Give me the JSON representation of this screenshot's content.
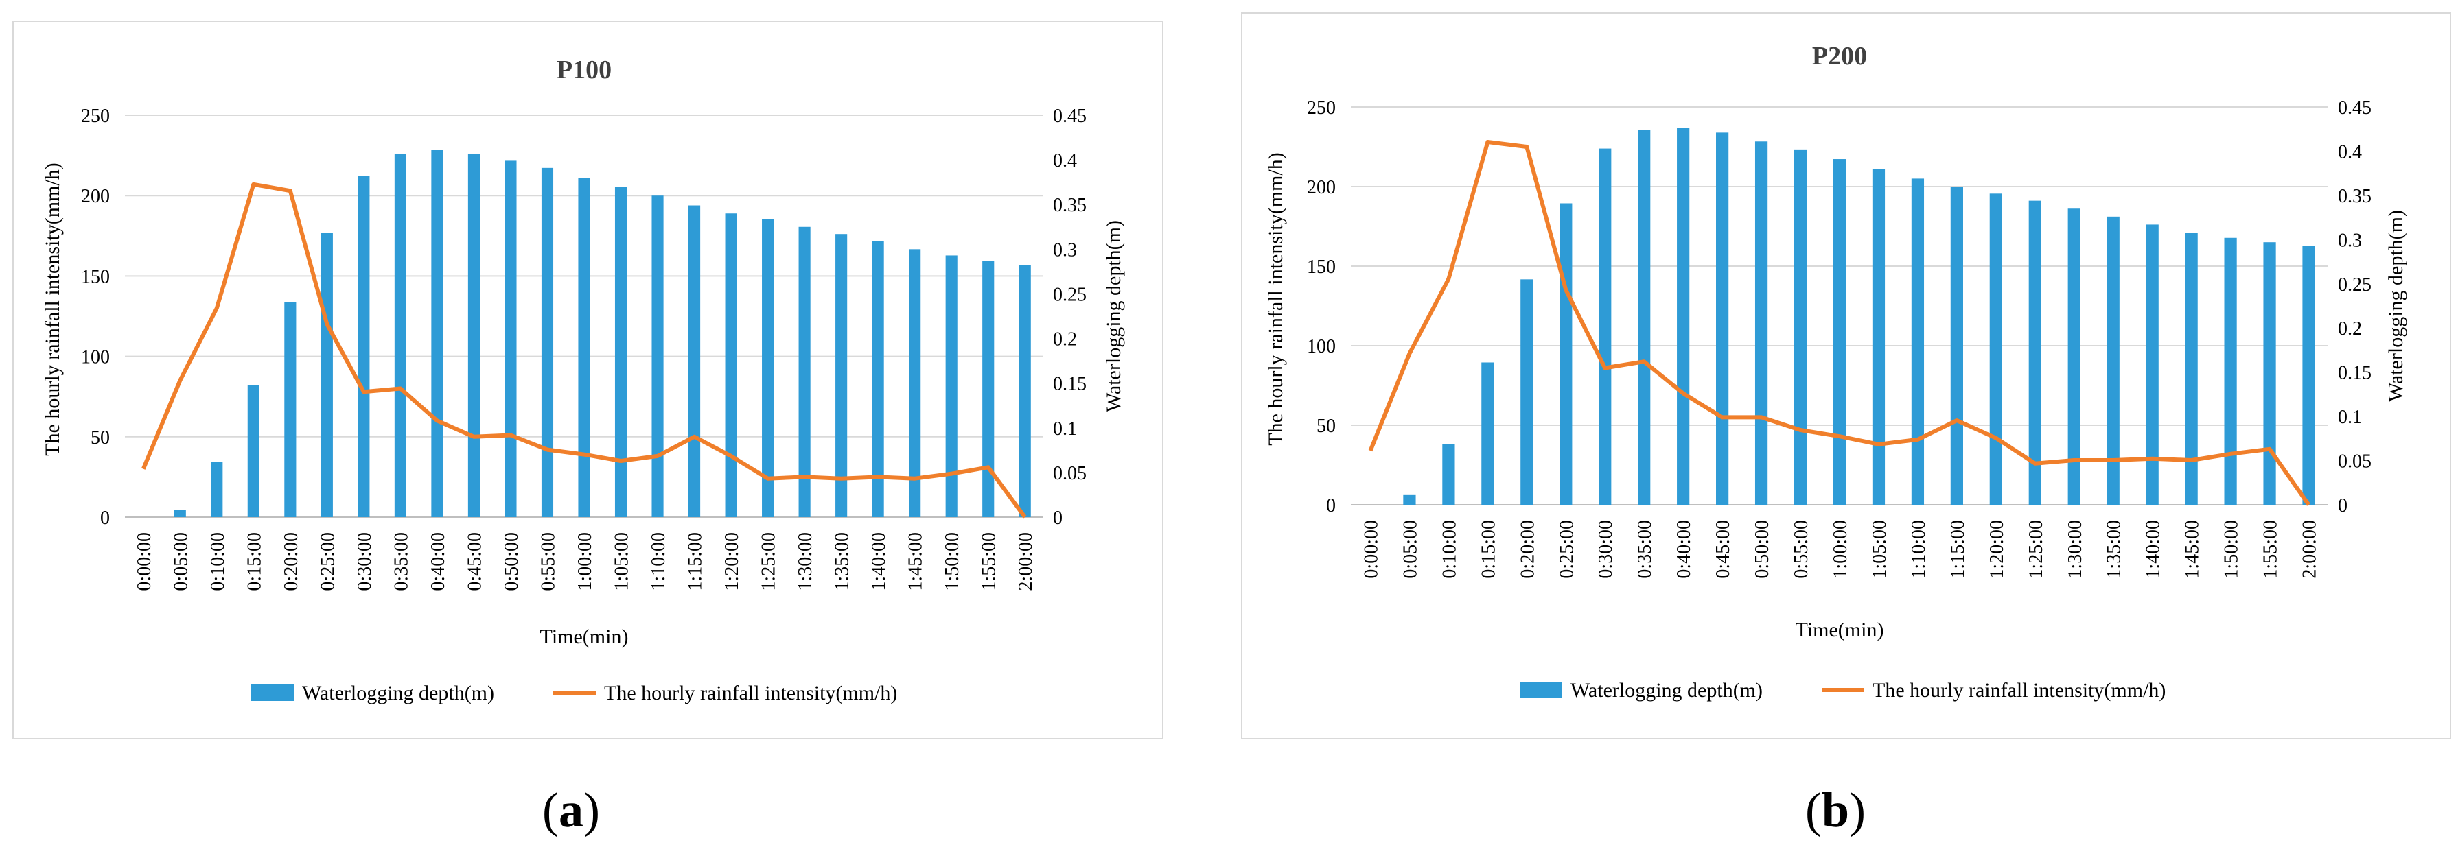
{
  "chart_data": [
    {
      "type": "bar+line",
      "title": "P100",
      "xlabel": "Time(min)",
      "ylabel_left": "The hourly rainfall intensity(mm/h)",
      "ylabel_right": "Waterlogging depth(m)",
      "ylim_left": [
        0,
        250
      ],
      "ylim_right": [
        0,
        0.45
      ],
      "yticks_left": [
        "0",
        "50",
        "100",
        "150",
        "200",
        "250"
      ],
      "yticks_right": [
        "0",
        "0.05",
        "0.1",
        "0.15",
        "0.2",
        "0.25",
        "0.3",
        "0.35",
        "0.4",
        "0.45"
      ],
      "categories": [
        "0:00:00",
        "0:05:00",
        "0:10:00",
        "0:15:00",
        "0:20:00",
        "0:25:00",
        "0:30:00",
        "0:35:00",
        "0:40:00",
        "0:45:00",
        "0:50:00",
        "0:55:00",
        "1:00:00",
        "1:05:00",
        "1:10:00",
        "1:15:00",
        "1:20:00",
        "1:25:00",
        "1:30:00",
        "1:35:00",
        "1:40:00",
        "1:45:00",
        "1:50:00",
        "1:55:00",
        "2:00:00"
      ],
      "series": [
        {
          "name": "Waterlogging depth(m)",
          "type": "bar",
          "axis": "right",
          "color": "#2e9bd6",
          "values": [
            0,
            0.008,
            0.062,
            0.148,
            0.241,
            0.318,
            0.382,
            0.407,
            0.411,
            0.407,
            0.399,
            0.391,
            0.38,
            0.37,
            0.36,
            0.349,
            0.34,
            0.334,
            0.325,
            0.317,
            0.309,
            0.3,
            0.293,
            0.287,
            0.282
          ]
        },
        {
          "name": "The hourly rainfall intensity(mm/h)",
          "type": "line",
          "axis": "left",
          "color": "#f07f2b",
          "values": [
            30,
            85,
            130,
            207,
            203,
            120,
            78,
            80,
            60,
            50,
            51,
            42,
            39,
            35,
            38,
            50,
            38,
            24,
            25,
            24,
            25,
            24,
            27,
            31,
            0
          ]
        }
      ],
      "legend": "bottom"
    },
    {
      "type": "bar+line",
      "title": "P200",
      "xlabel": "Time(min)",
      "ylabel_left": "The hourly rainfall intensity(mm/h)",
      "ylabel_right": "Waterlogging depth(m)",
      "ylim_left": [
        0,
        250
      ],
      "ylim_right": [
        0,
        0.45
      ],
      "yticks_left": [
        "0",
        "50",
        "100",
        "150",
        "200",
        "250"
      ],
      "yticks_right": [
        "0",
        "0.05",
        "0.1",
        "0.15",
        "0.2",
        "0.25",
        "0.3",
        "0.35",
        "0.4",
        "0.45"
      ],
      "categories": [
        "0:00:00",
        "0:05:00",
        "0:10:00",
        "0:15:00",
        "0:20:00",
        "0:25:00",
        "0:30:00",
        "0:35:00",
        "0:40:00",
        "0:45:00",
        "0:50:00",
        "0:55:00",
        "1:00:00",
        "1:05:00",
        "1:10:00",
        "1:15:00",
        "1:20:00",
        "1:25:00",
        "1:30:00",
        "1:35:00",
        "1:40:00",
        "1:45:00",
        "1:50:00",
        "1:55:00",
        "2:00:00"
      ],
      "series": [
        {
          "name": "Waterlogging depth(m)",
          "type": "bar",
          "axis": "right",
          "color": "#2e9bd6",
          "values": [
            0,
            0.011,
            0.069,
            0.161,
            0.255,
            0.341,
            0.403,
            0.424,
            0.426,
            0.421,
            0.411,
            0.402,
            0.391,
            0.38,
            0.369,
            0.36,
            0.352,
            0.344,
            0.335,
            0.326,
            0.317,
            0.308,
            0.302,
            0.297,
            0.293
          ]
        },
        {
          "name": "The hourly rainfall intensity(mm/h)",
          "type": "line",
          "axis": "left",
          "color": "#f07f2b",
          "values": [
            34,
            95,
            142,
            228,
            225,
            135,
            86,
            90,
            70,
            55,
            55,
            47,
            43,
            38,
            41,
            53,
            42,
            26,
            28,
            28,
            29,
            28,
            32,
            35,
            0
          ]
        }
      ],
      "legend": "bottom"
    }
  ],
  "captions": [
    {
      "open": "(",
      "letter": "a",
      "close": ")"
    },
    {
      "open": "(",
      "letter": "b",
      "close": ")"
    }
  ]
}
